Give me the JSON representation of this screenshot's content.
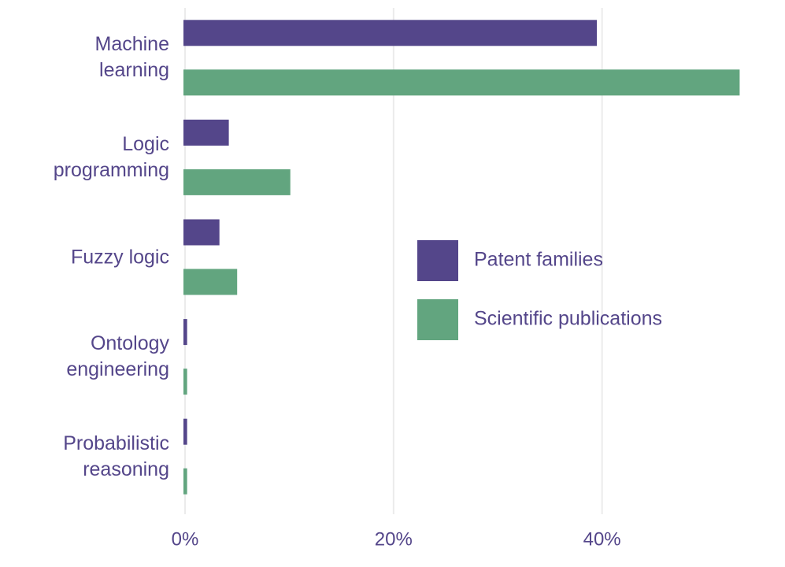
{
  "chart_data": {
    "type": "barh",
    "categories": [
      "Machine\nlearning",
      "Logic\nprogramming",
      "Fuzzy logic",
      "Ontology\nengineering",
      "Probabilistic\nreasoning"
    ],
    "series": [
      {
        "name": "Patent families",
        "color": "#54468a",
        "values": [
          39.5,
          4.2,
          3.3,
          0.2,
          0.2
        ]
      },
      {
        "name": "Scientific publications",
        "color": "#62a57f",
        "values": [
          53.2,
          10.1,
          5.0,
          0.2,
          0.2
        ]
      }
    ],
    "xlim": [
      0,
      54
    ],
    "xticks": [
      {
        "value": 0,
        "label": "0%"
      },
      {
        "value": 20,
        "label": "20%"
      },
      {
        "value": 40,
        "label": "40%"
      }
    ],
    "grid": true,
    "legend": "right"
  }
}
